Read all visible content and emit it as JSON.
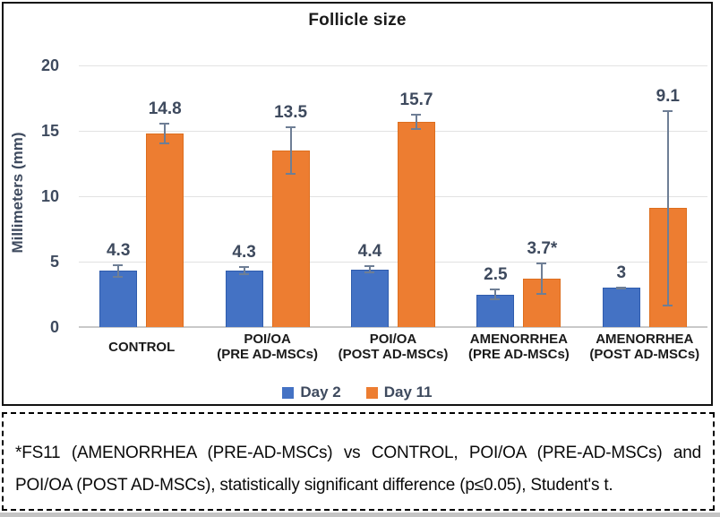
{
  "chart_data": {
    "type": "bar",
    "title": "Follicle size",
    "ylabel": "Millimeters (mm)",
    "ylim": [
      0,
      20
    ],
    "yticks": [
      0,
      5,
      10,
      15,
      20
    ],
    "grid": true,
    "legend_position": "bottom",
    "categories": [
      [
        "CONTROL"
      ],
      [
        "POI/OA",
        "(PRE AD-MSCs)"
      ],
      [
        "POI/OA",
        "(POST AD-MSCs)"
      ],
      [
        "AMENORRHEA",
        "(PRE AD-MSCs)"
      ],
      [
        "AMENORRHEA",
        "(POST AD-MSCs)"
      ]
    ],
    "series": [
      {
        "name": "Day 2",
        "color": "#4472C4",
        "border_color": "#2f5cad",
        "values": [
          4.3,
          4.3,
          4.4,
          2.5,
          3
        ],
        "labels": [
          "4.3",
          "4.3",
          "4.4",
          "2.5",
          "3"
        ],
        "errors": [
          0.5,
          0.35,
          0.3,
          0.45,
          0.1
        ]
      },
      {
        "name": "Day 11",
        "color": "#ED7D31",
        "border_color": "#dd6e1e",
        "values": [
          14.8,
          13.5,
          15.7,
          3.7,
          9.1
        ],
        "labels": [
          "14.8",
          "13.5",
          "15.7",
          "3.7*",
          "9.1"
        ],
        "errors": [
          0.85,
          1.85,
          0.6,
          1.2,
          7.5
        ]
      }
    ],
    "colors": {
      "grid": "#e2e2e2",
      "axis_line": "#c9c9c9",
      "error_bar": "#6e7e95",
      "tick_label": "#3e4a5e",
      "data_label": "#3e4a5e",
      "legend_label": "#3e4a5e",
      "category_label": "#1a1a1a",
      "title": "#1a1a1a"
    }
  },
  "footnote": {
    "lines": [
      "*FS11 (AMENORRHEA (PRE-AD-MSCs) vs CONTROL, POI/OA (PRE-AD-MSCs) and",
      "POI/OA (POST AD-MSCs), statistically significant difference (p≤0.05), Student's t."
    ]
  }
}
